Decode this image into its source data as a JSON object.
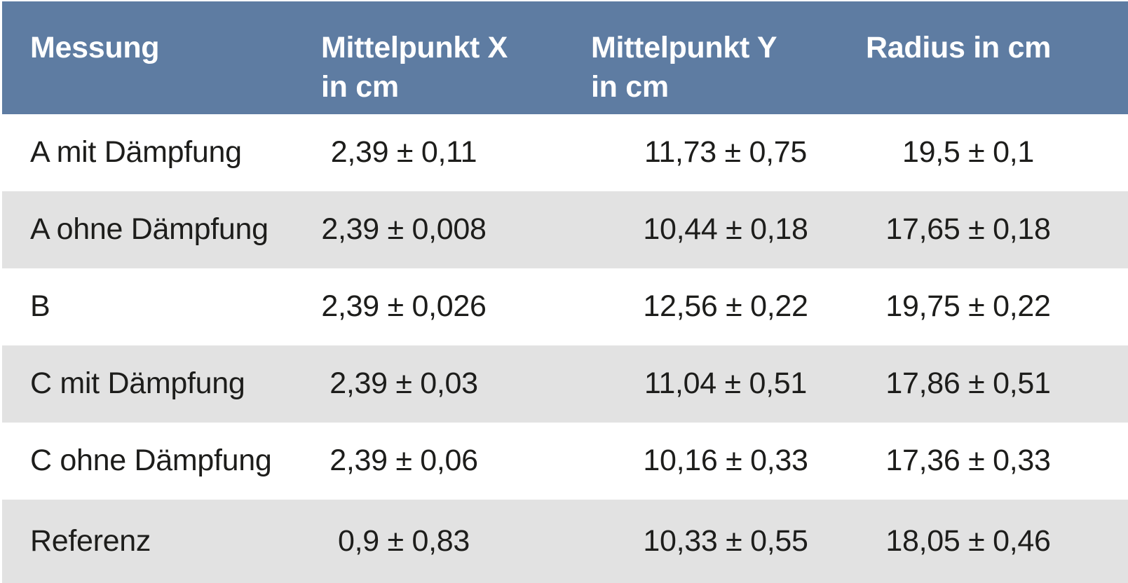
{
  "chart_data": {
    "type": "table",
    "columns": [
      {
        "title": "Messung",
        "unit": ""
      },
      {
        "title": "Mittelpunkt X",
        "unit": "in cm"
      },
      {
        "title": "Mittelpunkt Y",
        "unit": "in cm"
      },
      {
        "title": "Radius in cm",
        "unit": ""
      }
    ],
    "rows": [
      {
        "messung": "A mit Dämpfung",
        "mittelpunkt_x": "2,39 ± 0,11",
        "mittelpunkt_y": "11,73 ± 0,75",
        "radius": "19,5 ± 0,1"
      },
      {
        "messung": "A ohne Dämpfung",
        "mittelpunkt_x": "2,39 ± 0,008",
        "mittelpunkt_y": "10,44 ± 0,18",
        "radius": "17,65 ± 0,18"
      },
      {
        "messung": "B",
        "mittelpunkt_x": "2,39 ± 0,026",
        "mittelpunkt_y": "12,56 ± 0,22",
        "radius": "19,75 ± 0,22"
      },
      {
        "messung": "C mit Dämpfung",
        "mittelpunkt_x": "2,39 ± 0,03",
        "mittelpunkt_y": "11,04 ± 0,51",
        "radius": "17,86 ± 0,51"
      },
      {
        "messung": "C ohne Dämpfung",
        "mittelpunkt_x": "2,39 ± 0,06",
        "mittelpunkt_y": "10,16 ± 0,33",
        "radius": "17,36 ± 0,33"
      },
      {
        "messung": "Referenz",
        "mittelpunkt_x": "0,9 ± 0,83",
        "mittelpunkt_y": "10,33 ± 0,55",
        "radius": "18,05 ± 0,46"
      }
    ]
  },
  "colors": {
    "header_bg": "#5e7ca2",
    "header_text": "#ffffff",
    "row_even_bg": "#ffffff",
    "row_odd_bg": "#e2e2e2",
    "body_text": "#1d1d1b"
  }
}
